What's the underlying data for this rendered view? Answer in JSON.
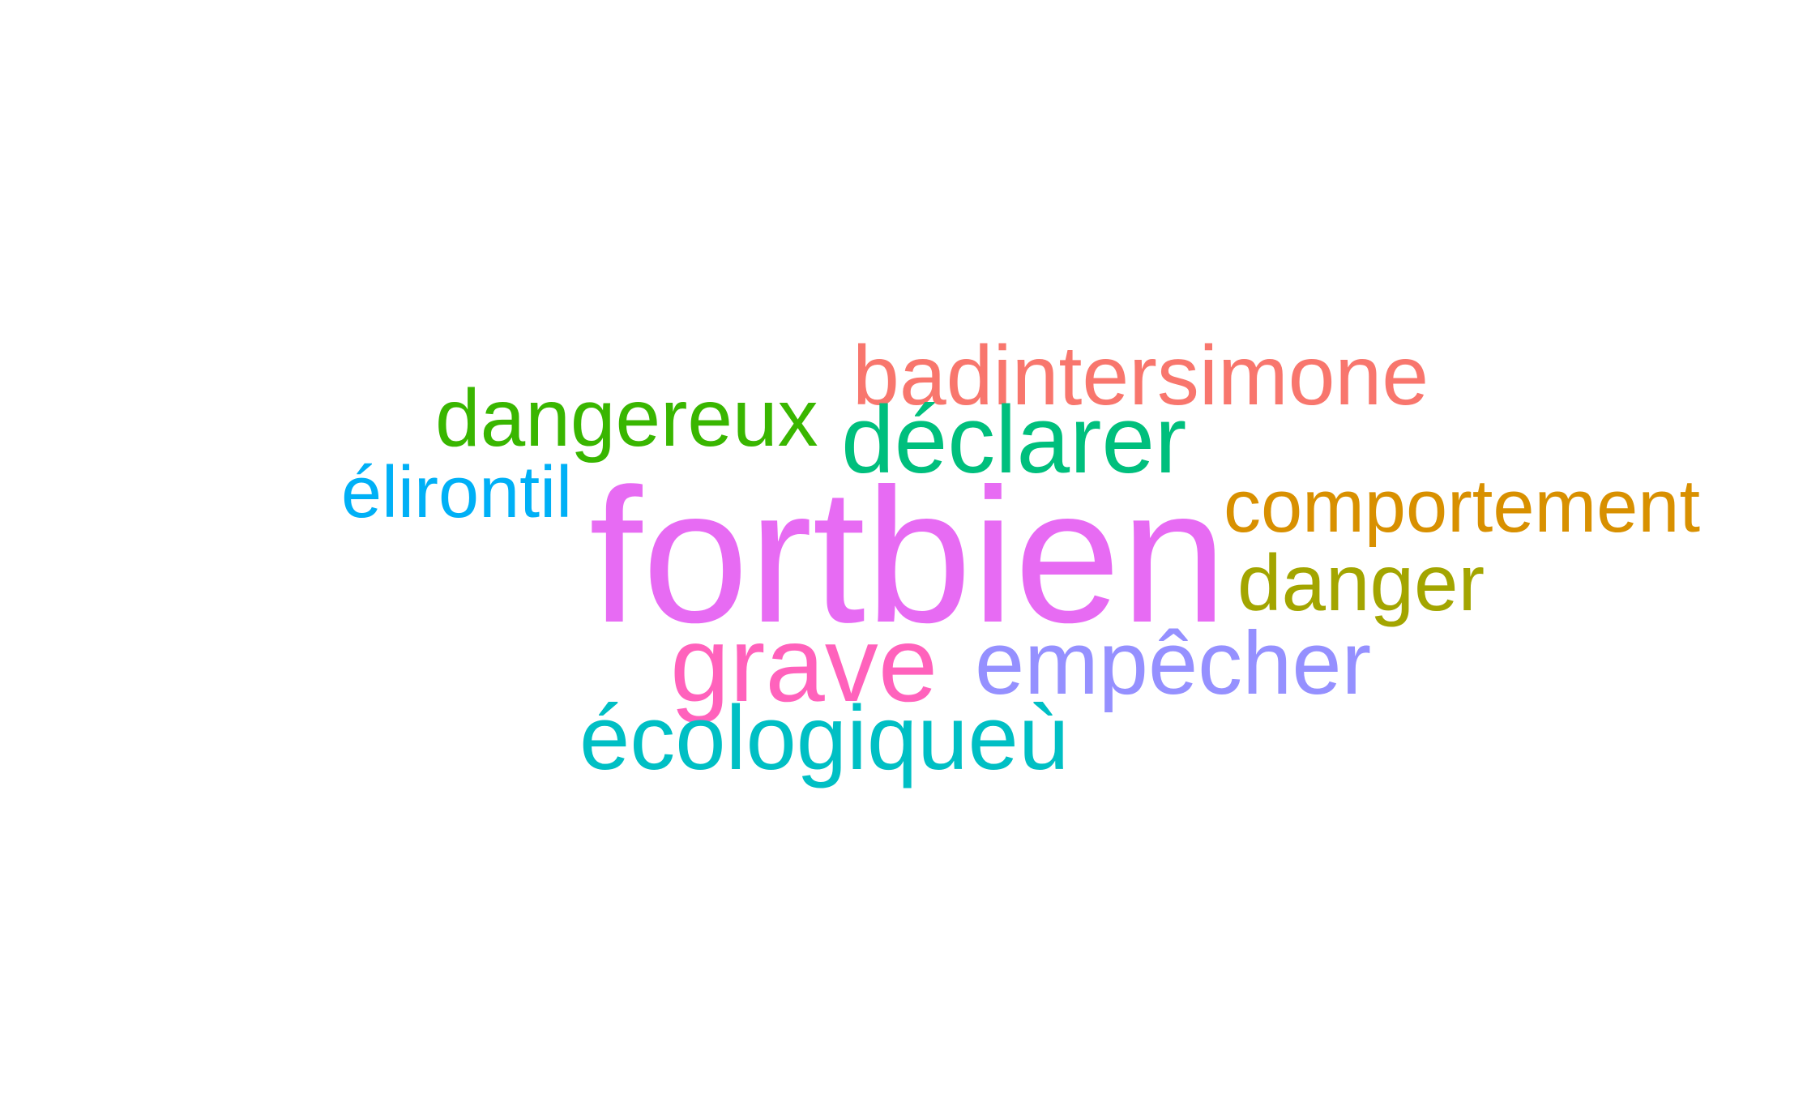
{
  "word_cloud": {
    "words": {
      "fortbien": {
        "text": "fortbien",
        "color": "#E76BF3"
      },
      "badintersimone": {
        "text": "badintersimone",
        "color": "#F8766D"
      },
      "dangereux": {
        "text": "dangereux",
        "color": "#39B600"
      },
      "declarer": {
        "text": "déclarer",
        "color": "#00BF7D"
      },
      "elirontil": {
        "text": "élirontil",
        "color": "#00B0F6"
      },
      "comportement": {
        "text": "comportement",
        "color": "#D89000"
      },
      "danger": {
        "text": "danger",
        "color": "#A3A500"
      },
      "grave": {
        "text": "grave",
        "color": "#FF62BC"
      },
      "empecher": {
        "text": "empêcher",
        "color": "#9590FF"
      },
      "ecologiqueu": {
        "text": "écologiqueù",
        "color": "#00BFC4"
      }
    }
  }
}
